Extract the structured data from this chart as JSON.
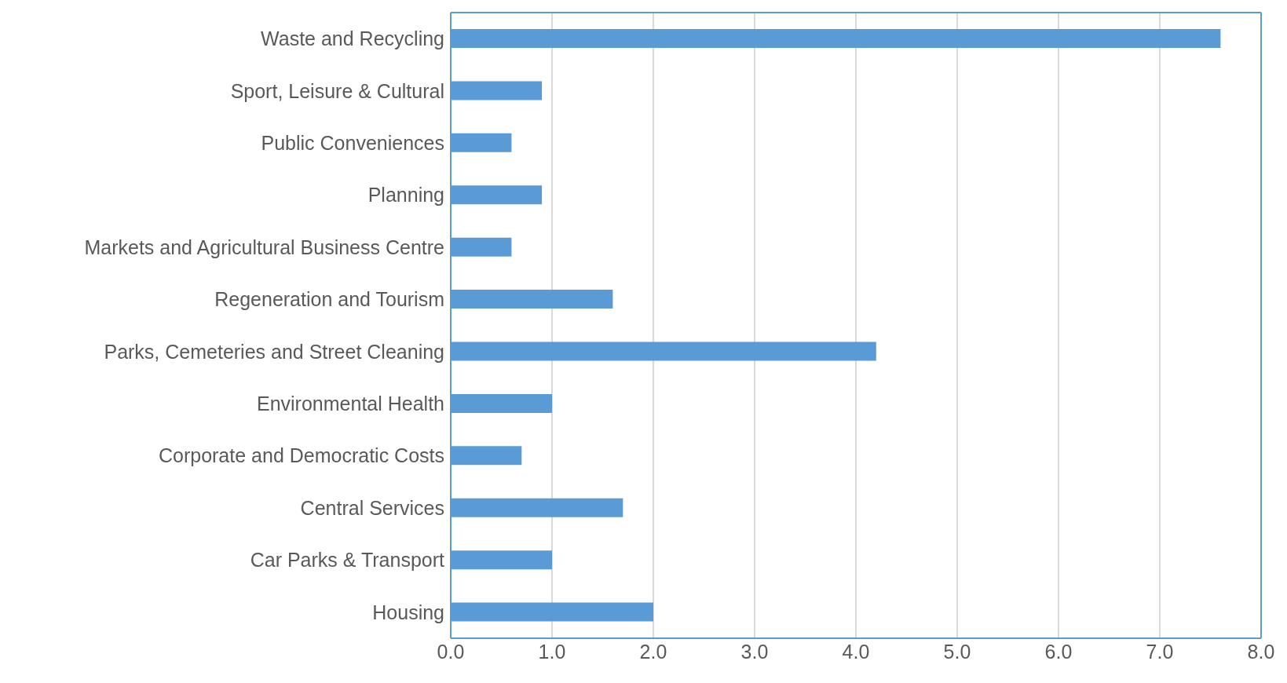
{
  "chart_data": {
    "type": "bar",
    "orientation": "horizontal",
    "categories": [
      "Waste and Recycling",
      "Sport, Leisure & Cultural",
      "Public Conveniences",
      "Planning",
      "Markets and Agricultural Business Centre",
      "Regeneration and Tourism",
      "Parks, Cemeteries and Street Cleaning",
      "Environmental Health",
      "Corporate and Democratic Costs",
      "Central Services",
      "Car Parks & Transport",
      "Housing"
    ],
    "values": [
      7.6,
      0.9,
      0.6,
      0.9,
      0.6,
      1.6,
      4.2,
      1.0,
      0.7,
      1.7,
      1.0,
      2.0
    ],
    "color": "#5b9bd5",
    "xlim": [
      0,
      8
    ],
    "xticks": [
      {
        "value": 0,
        "label": "0.0"
      },
      {
        "value": 1,
        "label": "1.0"
      },
      {
        "value": 2,
        "label": "2.0"
      },
      {
        "value": 3,
        "label": "3.0"
      },
      {
        "value": 4,
        "label": "4.0"
      },
      {
        "value": 5,
        "label": "5.0"
      },
      {
        "value": 6,
        "label": "6.0"
      },
      {
        "value": 7,
        "label": "7.0"
      },
      {
        "value": 8,
        "label": "8.0"
      }
    ],
    "grid": "x",
    "legend": false
  }
}
